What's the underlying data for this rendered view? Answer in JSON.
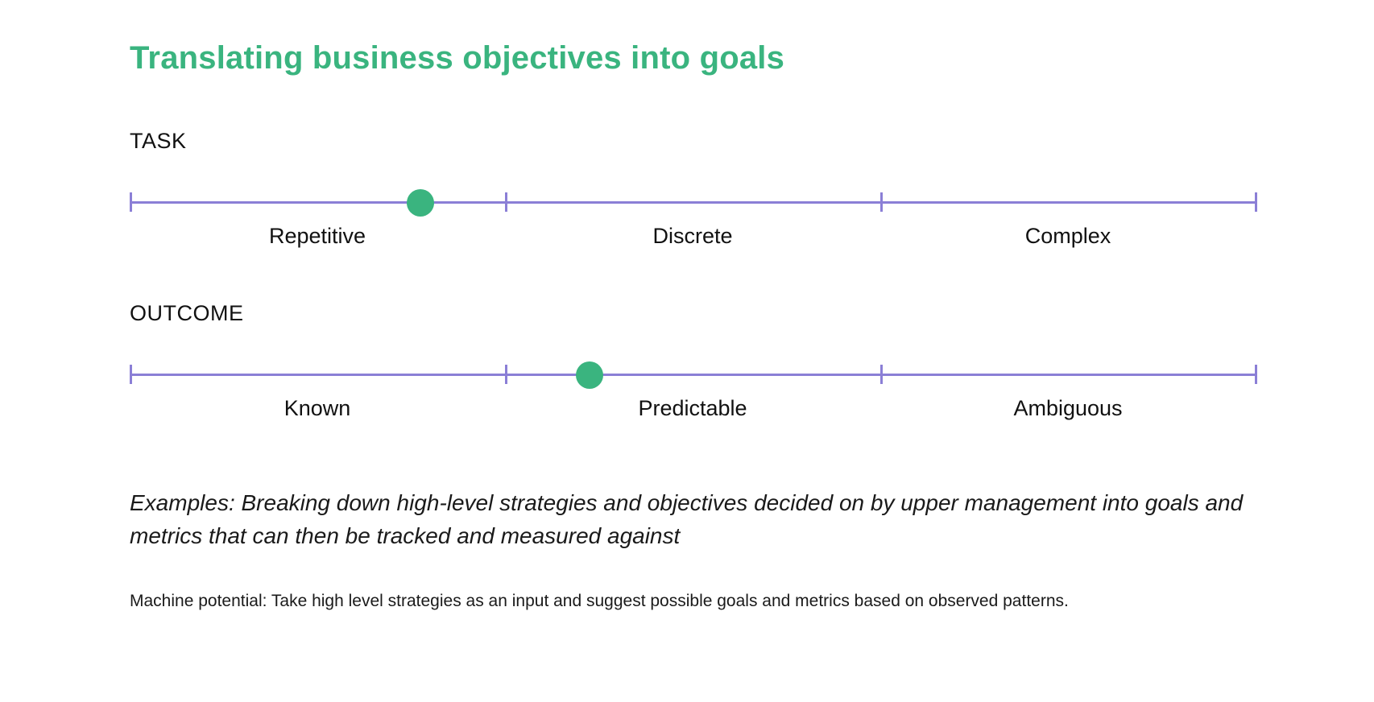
{
  "title": "Translating business objectives into goals",
  "colors": {
    "title": "#3ab47f",
    "track": "#8b7fd6",
    "marker": "#3ab47f",
    "text": "#111111"
  },
  "scales": [
    {
      "label": "TASK",
      "segments": [
        "Repetitive",
        "Discrete",
        "Complex"
      ],
      "marker_position": 0.257
    },
    {
      "label": "OUTCOME",
      "segments": [
        "Known",
        "Predictable",
        "Ambiguous"
      ],
      "marker_position": 0.407
    }
  ],
  "examples": "Examples: Breaking down high-level strategies and objectives decided on by upper management into goals and metrics that can then be tracked and measured against",
  "machine_potential": "Machine potential: Take high level strategies as an input and suggest possible goals and metrics based on observed patterns."
}
